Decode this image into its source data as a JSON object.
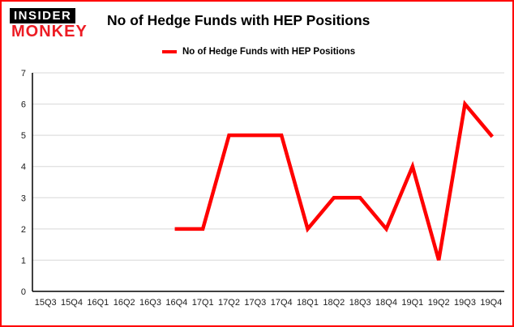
{
  "logo": {
    "line1": "INSIDER",
    "line2": "MONKEY"
  },
  "header": {
    "title": "No of Hedge Funds with HEP Positions"
  },
  "legend": {
    "label": "No of Hedge Funds with HEP Positions",
    "color": "#ff0000"
  },
  "chart_data": {
    "type": "line",
    "title": "No of Hedge Funds with HEP Positions",
    "categories": [
      "15Q3",
      "15Q4",
      "16Q1",
      "16Q2",
      "16Q3",
      "16Q4",
      "17Q1",
      "17Q2",
      "17Q3",
      "17Q4",
      "18Q1",
      "18Q2",
      "18Q3",
      "18Q4",
      "19Q1",
      "19Q2",
      "19Q3",
      "19Q4"
    ],
    "series": [
      {
        "name": "No of Hedge Funds with HEP Positions",
        "color": "#ff0000",
        "values": [
          null,
          null,
          null,
          null,
          null,
          2,
          2,
          5,
          5,
          5,
          2,
          3,
          3,
          2,
          4,
          1,
          6,
          5
        ]
      }
    ],
    "ylim": [
      0,
      7
    ],
    "yticks": [
      0,
      1,
      2,
      3,
      4,
      5,
      6,
      7
    ],
    "grid": true,
    "grid_color": "#d8d8d8",
    "axis_color": "#000000",
    "legend_position": "top-left"
  }
}
